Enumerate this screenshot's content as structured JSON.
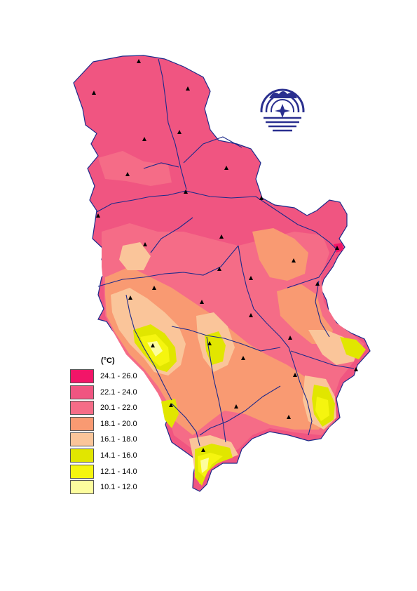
{
  "map": {
    "colors": {
      "c24": "#f21568",
      "c22": "#f05581",
      "c20": "#f56c87",
      "c18": "#f99a72",
      "c16": "#fac59a",
      "c14": "#e1e600",
      "c12": "#f5f50f",
      "c10": "#fdfd9e",
      "river": "#1d2a8a",
      "station": "#000000",
      "logo": "#2a2f8f"
    }
  },
  "legend": {
    "unit": "(°C)",
    "items": [
      {
        "label": "24.1 - 26.0",
        "color": "#f21568"
      },
      {
        "label": "22.1 - 24.0",
        "color": "#f05581"
      },
      {
        "label": "20.1 - 22.0",
        "color": "#f56c87"
      },
      {
        "label": "18.1 - 20.0",
        "color": "#f99a72"
      },
      {
        "label": "16.1 - 18.0",
        "color": "#fac59a"
      },
      {
        "label": "14.1 - 16.0",
        "color": "#e1e600"
      },
      {
        "label": "12.1 - 14.0",
        "color": "#f5f50f"
      },
      {
        "label": "10.1 - 12.0",
        "color": "#fdfd9e"
      }
    ]
  }
}
